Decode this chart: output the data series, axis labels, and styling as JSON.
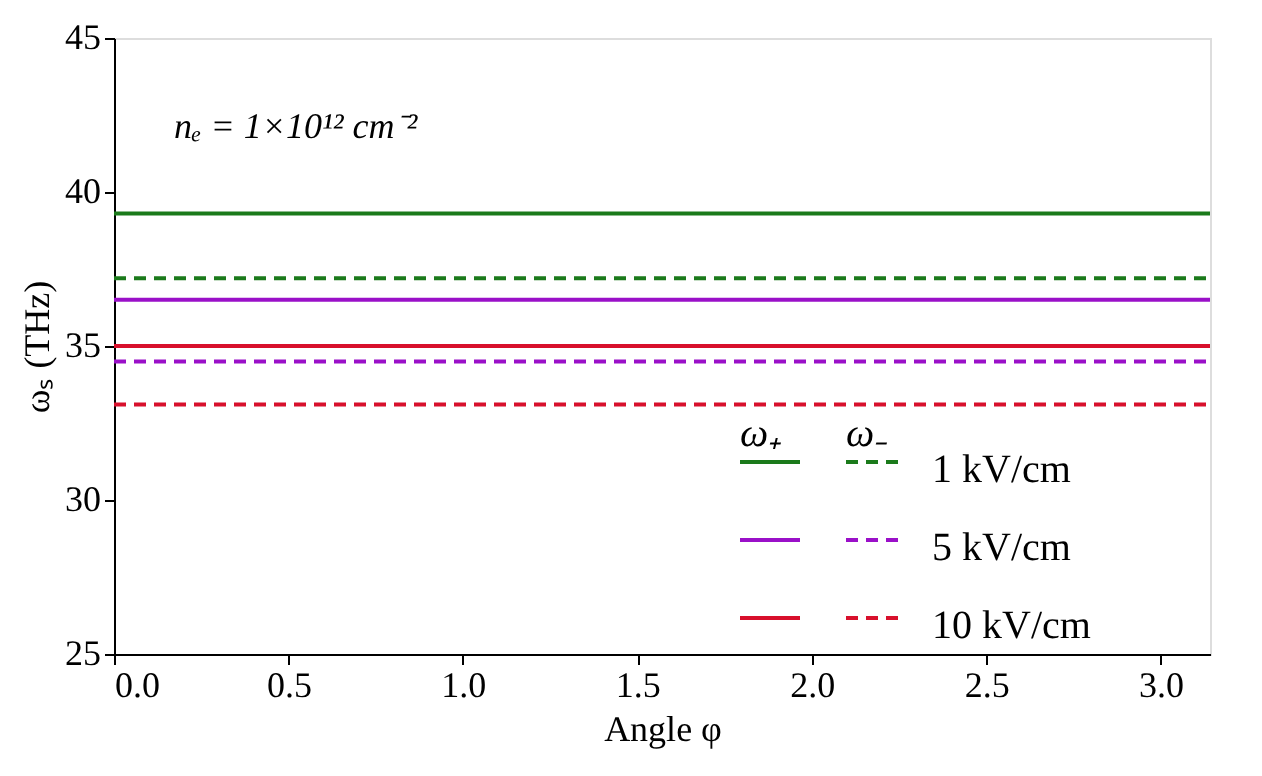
{
  "chart_data": {
    "type": "line",
    "xlabel": "Angle φ",
    "ylabel": "ωₛ (THz)",
    "annotations": [
      "nₑ = 1×10¹² cm⁻²",
      "ω₊",
      "ω₋"
    ],
    "x": [
      0,
      3.1416
    ],
    "xlim": [
      0,
      3.1416
    ],
    "xticks": [
      {
        "value": 0,
        "label": "0.0"
      },
      0.5,
      {
        "value": 1,
        "label": "1.0"
      },
      1.5,
      {
        "value": 2,
        "label": "2.0"
      },
      2.5,
      {
        "value": 3,
        "label": "3.0"
      }
    ],
    "ylim": [
      25,
      45
    ],
    "yticks": [
      25,
      30,
      35,
      40,
      45
    ],
    "grid": false,
    "legend": "bottom right",
    "marker": "none",
    "series": [
      {
        "name": "1 kV/cm",
        "color": "#1b7a1b",
        "line_style": "solid",
        "values": [
          39.3,
          39.3
        ]
      },
      {
        "color": "#1b7a1b",
        "line_style": "dashed",
        "values": [
          37.2,
          37.2
        ]
      },
      {
        "name": "5 kV/cm",
        "color": "#9a10c8",
        "line_style": "solid",
        "values": [
          36.5,
          36.5
        ]
      },
      {
        "color": "#9a10c8",
        "line_style": "dashed",
        "values": [
          34.5,
          34.5
        ]
      },
      {
        "name": "10 kV/cm",
        "color": "#d8102c",
        "line_style": "solid",
        "values": [
          35.0,
          35.0
        ]
      },
      {
        "color": "#d8102c",
        "line_style": "dashed",
        "values": [
          33.1,
          33.1
        ]
      }
    ]
  }
}
